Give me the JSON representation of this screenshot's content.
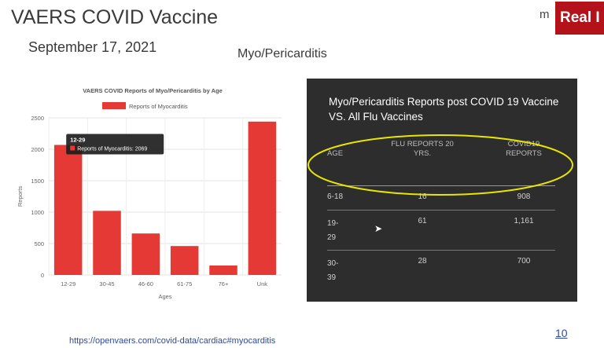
{
  "slide": {
    "title": "VAERS COVID Vaccine",
    "date": "September 17, 2021",
    "subtitle": "Myo/Pericarditis",
    "logo_fragment": "m",
    "badge_text": "Real I",
    "source_url": "https://openvaers.com/covid-data/cardiac#myocarditis",
    "page_number": "10"
  },
  "chart_data": {
    "type": "bar",
    "title": "VAERS COVID Reports of Myo/Pericarditis by Age",
    "legend": "Reports of Myocarditis",
    "xlabel": "Ages",
    "ylabel": "Reports",
    "categories": [
      "12-29",
      "30-45",
      "46-60",
      "61-75",
      "76+",
      "Unk"
    ],
    "values": [
      2069,
      1020,
      660,
      460,
      150,
      2440
    ],
    "ylim": [
      0,
      2500
    ],
    "yticks": [
      0,
      500,
      1000,
      1500,
      2000,
      2500
    ],
    "grid": true,
    "color": "#e53935",
    "tooltip": {
      "title": "12-29",
      "text": "Reports of Myocarditis: 2069"
    }
  },
  "table": {
    "heading": "Myo/Pericarditis Reports post COVID 19 Vaccine VS. All Flu Vaccines",
    "headers": [
      "AGE",
      "FLU REPORTS 20 YRS.",
      "COVID19 REPORTS"
    ],
    "rows": [
      [
        "6-18",
        "16",
        "908"
      ],
      [
        "19-29",
        "61",
        "1,161"
      ],
      [
        "30-39",
        "28",
        "700"
      ]
    ],
    "highlight_color": "#e6e600"
  }
}
